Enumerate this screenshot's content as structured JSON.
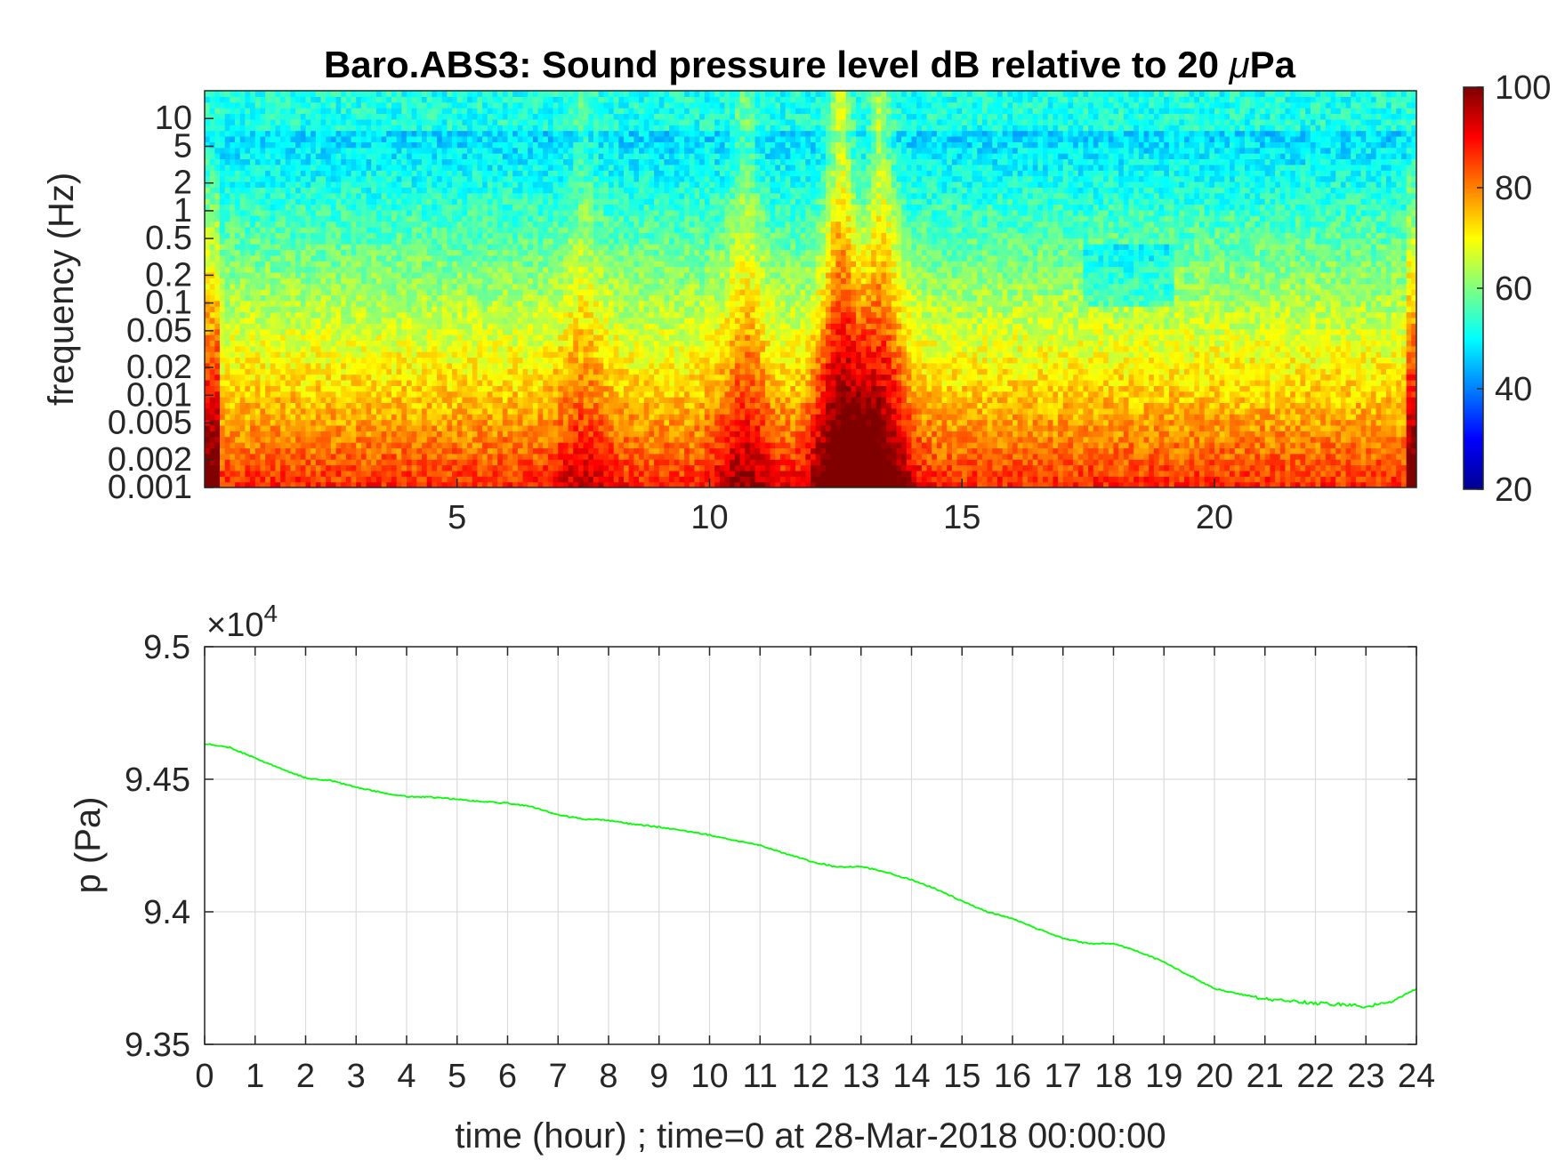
{
  "chart_data": [
    {
      "type": "heatmap",
      "title": "Baro.ABS3: Sound pressure level dB relative to 20 μPa",
      "title_main": "Baro.ABS3: Sound pressure level dB relative to 20 ",
      "title_mu": "μ",
      "title_tail": "Pa",
      "ylabel": "frequency (Hz)",
      "xlabel": "",
      "xlim": [
        0,
        24
      ],
      "ylim": [
        0.001,
        20
      ],
      "yscale": "log",
      "colormap": "jet",
      "x_ticks": [
        5,
        10,
        15,
        20
      ],
      "x_tick_labels": [
        "5",
        "10",
        "15",
        "20"
      ],
      "y_ticks": [
        0.001,
        0.002,
        0.005,
        0.01,
        0.02,
        0.05,
        0.1,
        0.2,
        0.5,
        1,
        2,
        5,
        10
      ],
      "y_tick_labels": [
        "0.001",
        "0.002",
        "0.005",
        "0.01",
        "0.02",
        "0.05",
        "0.1",
        "0.2",
        "0.5",
        "1",
        "2",
        "5",
        "10"
      ],
      "colorbar": {
        "range": [
          20,
          100
        ],
        "ticks": [
          20,
          40,
          60,
          80,
          100
        ],
        "tick_labels": [
          "20",
          "40",
          "60",
          "80",
          "100"
        ]
      },
      "features": [
        {
          "hour": 12.6,
          "level_db": 95
        },
        {
          "hour": 13.4,
          "level_db": 90
        },
        {
          "hour": 10.7,
          "level_db": 82
        },
        {
          "hour": 7.5,
          "level_db": 78
        }
      ]
    },
    {
      "type": "line",
      "title": "",
      "xlabel": "time (hour) ; time=0 at 28-Mar-2018 00:00:00",
      "ylabel": "p (Pa)",
      "xlim": [
        0,
        24
      ],
      "ylim": [
        93500,
        95000
      ],
      "grid": true,
      "y_exponent_label": "×10",
      "y_exponent_power": "4",
      "x_ticks": [
        0,
        1,
        2,
        3,
        4,
        5,
        6,
        7,
        8,
        9,
        10,
        11,
        12,
        13,
        14,
        15,
        16,
        17,
        18,
        19,
        20,
        21,
        22,
        23,
        24
      ],
      "x_tick_labels": [
        "0",
        "1",
        "2",
        "3",
        "4",
        "5",
        "6",
        "7",
        "8",
        "9",
        "10",
        "11",
        "12",
        "13",
        "14",
        "15",
        "16",
        "17",
        "18",
        "19",
        "20",
        "21",
        "22",
        "23",
        "24"
      ],
      "y_ticks": [
        93500,
        94000,
        94500,
        95000
      ],
      "y_tick_labels": [
        "9.35",
        "9.4",
        "9.45",
        "9.5"
      ],
      "line_color": "#00ff00",
      "x": [
        0,
        0.5,
        1,
        1.5,
        2,
        2.5,
        3,
        3.5,
        4,
        4.5,
        5,
        5.5,
        6,
        6.5,
        7,
        7.5,
        8,
        8.5,
        9,
        9.5,
        10,
        10.5,
        11,
        11.5,
        12,
        12.5,
        13,
        13.5,
        14,
        14.5,
        15,
        15.5,
        16,
        16.5,
        17,
        17.5,
        18,
        18.5,
        19,
        19.5,
        20,
        20.5,
        21,
        21.5,
        22,
        22.5,
        23,
        23.5,
        24
      ],
      "y": [
        94635,
        94620,
        94580,
        94540,
        94505,
        94495,
        94470,
        94450,
        94435,
        94432,
        94425,
        94415,
        94410,
        94395,
        94365,
        94350,
        94345,
        94330,
        94320,
        94305,
        94290,
        94270,
        94250,
        94220,
        94190,
        94170,
        94170,
        94150,
        94120,
        94085,
        94040,
        94000,
        93975,
        93935,
        93900,
        93880,
        93880,
        93850,
        93810,
        93760,
        93710,
        93690,
        93670,
        93665,
        93655,
        93650,
        93645,
        93660,
        93710
      ]
    }
  ]
}
